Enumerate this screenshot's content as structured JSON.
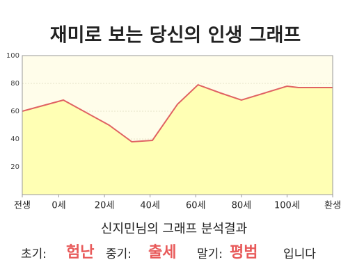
{
  "chart_data": {
    "type": "area",
    "title": "재미로 보는 당신의 인생 그래프",
    "x": [
      -16,
      2,
      22,
      32,
      41,
      52,
      61,
      71,
      80,
      100,
      105,
      120
    ],
    "series": [
      {
        "color": "#e06262",
        "fill": "#ffffb4",
        "values": [
          60,
          68,
          50,
          38,
          39,
          65,
          79,
          73,
          68,
          78,
          77,
          77
        ]
      }
    ],
    "xlim": [
      -16,
      120
    ],
    "ylim": [
      0,
      100
    ],
    "xticks": [
      {
        "value": -16,
        "label": "전생"
      },
      {
        "value": 0,
        "label": "0세"
      },
      {
        "value": 20,
        "label": "20세"
      },
      {
        "value": 40,
        "label": "40세"
      },
      {
        "value": 60,
        "label": "60세"
      },
      {
        "value": 80,
        "label": "80세"
      },
      {
        "value": 100,
        "label": "100세"
      },
      {
        "value": 120,
        "label": "환생"
      }
    ],
    "yticks": [
      20,
      40,
      60,
      80,
      100
    ],
    "grid": true
  },
  "summary": {
    "heading": "신지민님의 그래프 분석결과",
    "early_label": "초기:",
    "early": "험난",
    "middle_label": "중기:",
    "middle": "출세",
    "late_label": "말기:",
    "late": "평범",
    "ending": "입니다"
  }
}
